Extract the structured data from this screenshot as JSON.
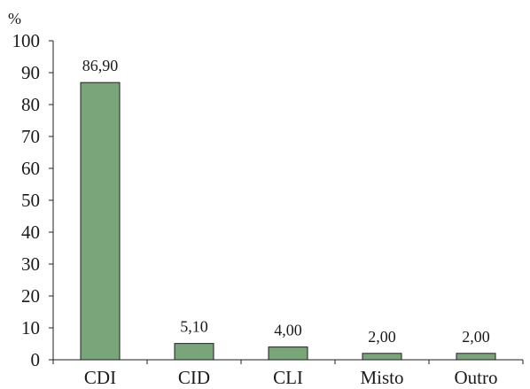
{
  "chart_data": {
    "type": "bar",
    "title": "",
    "xlabel": "",
    "ylabel": "%",
    "categories": [
      "CDI",
      "CID",
      "CLI",
      "Misto",
      "Outro"
    ],
    "values": [
      86.9,
      5.1,
      4.0,
      2.0,
      2.0
    ],
    "value_labels": [
      "86,90",
      "5,10",
      "4,00",
      "2,00",
      "2,00"
    ],
    "ylim": [
      0,
      100
    ],
    "yticks": [
      0,
      10,
      20,
      30,
      40,
      50,
      60,
      70,
      80,
      90,
      100
    ],
    "grid": false,
    "legend": "none",
    "colors": {
      "bar_fill": "#7aa57a",
      "bar_stroke": "#1e1e1e",
      "axis": "#1e1e1e"
    }
  }
}
